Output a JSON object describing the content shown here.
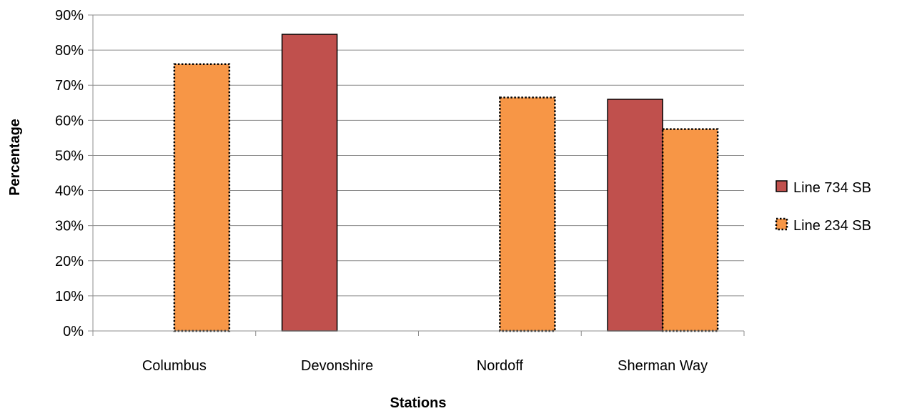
{
  "chart_data": {
    "type": "bar",
    "categories": [
      "Columbus",
      "Devonshire",
      "Nordoff",
      "Sherman Way"
    ],
    "series": [
      {
        "name": "Line 734 SB",
        "values": [
          null,
          84.5,
          null,
          66
        ],
        "color": "#c0504d",
        "border": "solid"
      },
      {
        "name": "Line 234 SB",
        "values": [
          76,
          null,
          66.5,
          57.5
        ],
        "color": "#f79646",
        "border": "dotted"
      }
    ],
    "xlabel": "Stations",
    "ylabel": "Percentage",
    "ylim": [
      0,
      90
    ],
    "ytick_step": 10,
    "ytick_labels": [
      "0%",
      "10%",
      "20%",
      "30%",
      "40%",
      "50%",
      "60%",
      "70%",
      "80%",
      "90%"
    ],
    "grid": true,
    "legend_position": "right"
  }
}
